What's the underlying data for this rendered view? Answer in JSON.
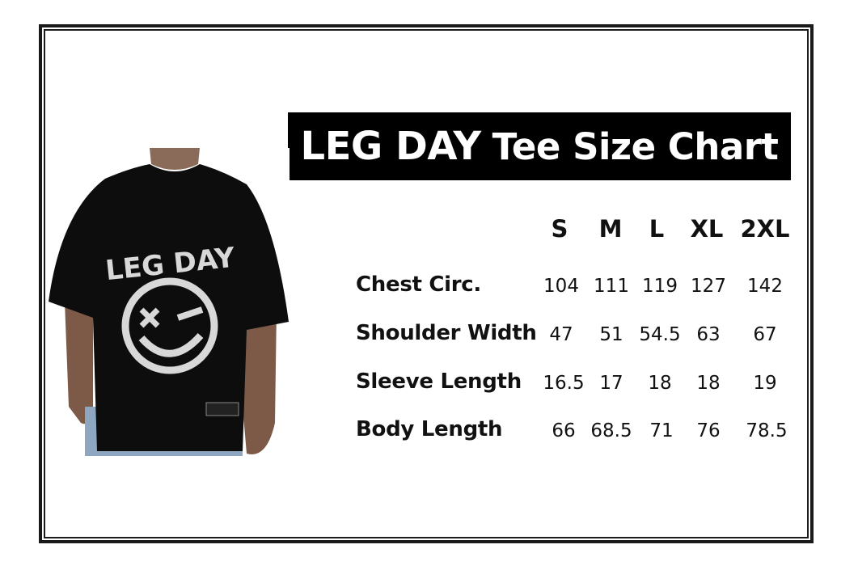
{
  "title": {
    "brand": "LEG DAY",
    "rest": "Tee Size Chart"
  },
  "photo": {
    "shirt_print": "LEG DAY",
    "shirt_color": "#0d0d0d",
    "print_color": "#d8d8d8"
  },
  "table": {
    "sizes": [
      "S",
      "M",
      "L",
      "XL",
      "2XL"
    ],
    "rows": [
      {
        "label": "Chest Circ.",
        "values": [
          "104",
          "111",
          "119",
          "127",
          "142"
        ]
      },
      {
        "label": "Shoulder Width",
        "values": [
          "47",
          "51",
          "54.5",
          "63",
          "67"
        ]
      },
      {
        "label": "Sleeve Length",
        "values": [
          "16.5",
          "17",
          "18",
          "18",
          "19"
        ]
      },
      {
        "label": "Body Length",
        "values": [
          "66",
          "68.5",
          "71",
          "76",
          "78.5"
        ]
      }
    ]
  }
}
